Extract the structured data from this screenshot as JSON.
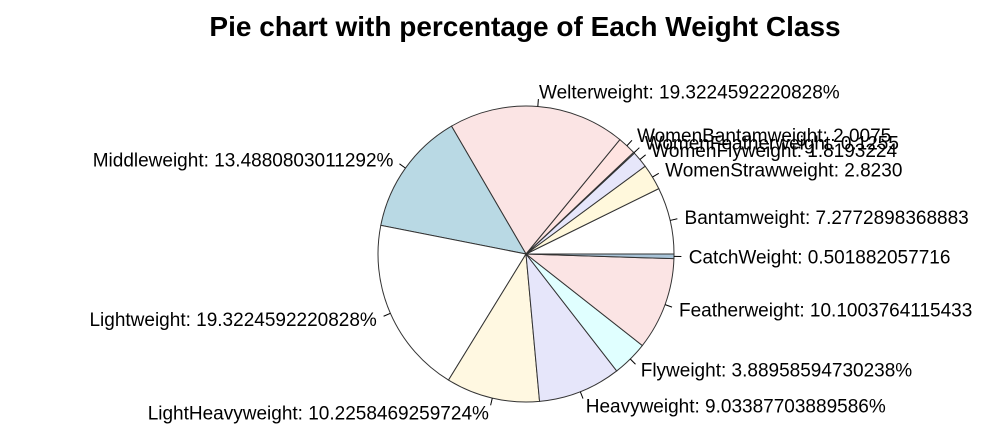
{
  "chart_data": {
    "type": "pie",
    "title": "Pie chart with percentage of Each Weight Class",
    "slices": [
      {
        "label": "Bantamweight: 7.2772898368883",
        "value": 7.2772898368883,
        "color": "#ffffff"
      },
      {
        "label": "WomenStrawweight: 2.8230",
        "value": 2.823,
        "color": "#fff8dc"
      },
      {
        "label": "WomenFlyweight: 1.8193224",
        "value": 1.8193224,
        "color": "#e6e6fa"
      },
      {
        "label": "WomenFeatherweight: 0.1255",
        "value": 0.1255,
        "color": "#e0ffff"
      },
      {
        "label": "WomenBantamweight: 2.0075",
        "value": 2.0075,
        "color": "#ffe4e1"
      },
      {
        "label": "Welterweight: 19.3224592220828%",
        "value": 19.3224592220828,
        "color": "#fbe4e4"
      },
      {
        "label": "Middleweight: 13.4880803011292%",
        "value": 13.4880803011292,
        "color": "#b9d9e4"
      },
      {
        "label": "Lightweight: 19.3224592220828%",
        "value": 19.3224592220828,
        "color": "#ffffff"
      },
      {
        "label": "LightHeavyweight: 10.2258469259724%",
        "value": 10.2258469259724,
        "color": "#fff8e1"
      },
      {
        "label": "Heavyweight: 9.03387703889586%",
        "value": 9.03387703889586,
        "color": "#e6e6fa"
      },
      {
        "label": "Flyweight: 3.88958594730238%",
        "value": 3.88958594730238,
        "color": "#e0ffff"
      },
      {
        "label": "Featherweight: 10.1003764115433",
        "value": 10.1003764115433,
        "color": "#fbe4e4"
      },
      {
        "label": "CatchWeight: 0.501882057716",
        "value": 0.501882057716,
        "color": "#a9c4d8"
      }
    ]
  }
}
